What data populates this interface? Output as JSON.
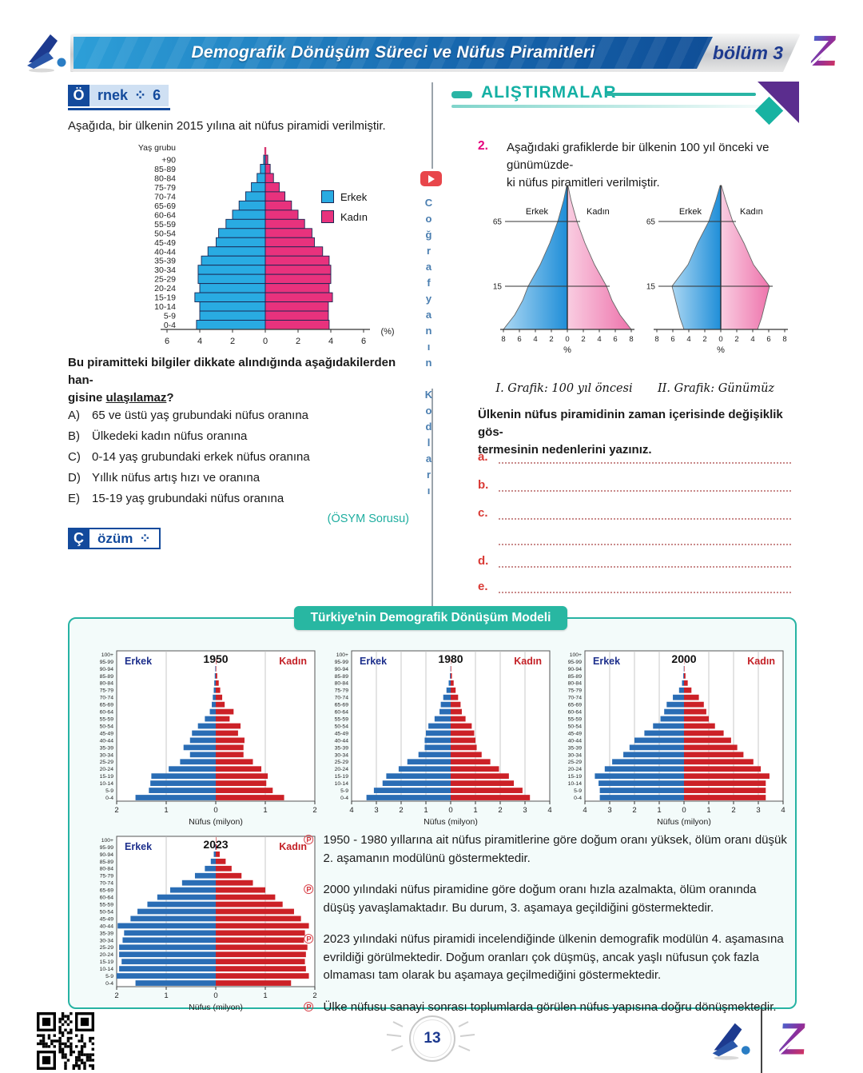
{
  "header": {
    "title": "Demografik Dönüşüm Süreci ve Nüfus Piramitleri",
    "chapter": "bölüm 3"
  },
  "sidebar": {
    "channel": "Coğrafyanın Kodları"
  },
  "page": {
    "number": "13"
  },
  "ornek": {
    "badge_initial": "Ö",
    "badge_rest": "rnek",
    "badge_icon": "⁘",
    "badge_number": "6",
    "intro": "Aşağıda, bir ülkenin 2015 yılına ait nüfus piramidi verilmiştir.",
    "question_line1": "Bu piramitteki bilgiler dikkate alındığında aşağıdakilerden han-",
    "question_pre": "gisine ",
    "question_underlined": "ulaşılamaz",
    "question_post": "?",
    "options": [
      {
        "key": "A)",
        "text": "65 ve üstü yaş grubundaki nüfus oranına"
      },
      {
        "key": "B)",
        "text": "Ülkedeki kadın nüfus oranına"
      },
      {
        "key": "C)",
        "text": "0-14 yaş grubundaki erkek nüfus oranına"
      },
      {
        "key": "D)",
        "text": "Yıllık nüfus artış hızı ve oranına"
      },
      {
        "key": "E)",
        "text": "15-19 yaş grubundaki nüfus oranına"
      }
    ],
    "source": "(ÖSYM Sorusu)",
    "cozum_initial": "Ç",
    "cozum_rest": "özüm",
    "cozum_icon": "⁘"
  },
  "exercises": {
    "title": "ALIŞTIRMALAR",
    "q_number": "2.",
    "q_line1": "Aşağıdaki grafiklerde bir ülkenin 100 yıl önceki ve günümüzde-",
    "q_line2": "ki nüfus piramitleri verilmiştir.",
    "caption1": "I. Grafik: 100 yıl öncesi",
    "caption2": "II. Grafik: Günümüz",
    "prompt_line1": "Ülkenin nüfus piramidinin zaman içerisinde değişiklik gös-",
    "prompt_line2": "termesinin nedenlerini yazınız.",
    "answer_labels": [
      "a.",
      "b.",
      "c.",
      "d.",
      "e."
    ]
  },
  "model_box": {
    "title": "Türkiye'nin Demografik Dönüşüm Modeli",
    "bullets": [
      "1950 - 1980 yıllarına ait nüfus piramitlerine göre doğum oranı yüksek, ölüm oranı düşük 2. aşamanın modülünü göstermektedir.",
      "2000 yılındaki nüfus piramidine göre doğum oranı hızla azalmakta, ölüm oranında düşüş yavaşlamaktadır. Bu durum, 3. aşamaya geçildiğini göstermektedir.",
      "2023 yılındaki nüfus piramidi incelendiğinde ülkenin demografik modülün 4. aşamasına evrildiği görülmektedir. Doğum oranları çok düşmüş, ancak yaşlı nüfusun çok fazla olmaması tam olarak bu aşamaya geçilmediğini göstermektedir.",
      "Ülke nüfusu sanayi sonrası toplumlarda görülen nüfus yapısına doğru dönüşmektedir."
    ]
  },
  "chart_data": [
    {
      "id": "ornek6",
      "type": "bar-pyramid",
      "title": "",
      "year": "2015",
      "unit": "%",
      "ylabel": "Yaş grubu",
      "xlabel": "(%)",
      "axis_max": 6,
      "ticks": [
        6,
        4,
        2,
        0,
        2,
        4,
        6
      ],
      "top_tick": true,
      "legend": {
        "male": "Erkek",
        "female": "Kadın"
      },
      "colors": {
        "male": "#29abe2",
        "female": "#e8327d",
        "outline": "#1b2653"
      },
      "ages": [
        "+90",
        "85-89",
        "80-84",
        "75-79",
        "70-74",
        "65-69",
        "60-64",
        "55-59",
        "50-54",
        "45-49",
        "40-44",
        "35-39",
        "30-34",
        "25-29",
        "20-24",
        "15-19",
        "10-14",
        "5-9",
        "0-4"
      ],
      "male": [
        0.1,
        0.3,
        0.5,
        0.85,
        1.2,
        1.6,
        2.0,
        2.4,
        2.85,
        3.0,
        3.5,
        3.9,
        4.1,
        4.1,
        4.0,
        4.3,
        4.0,
        4.0,
        4.2
      ],
      "female": [
        0.15,
        0.3,
        0.5,
        0.85,
        1.2,
        1.6,
        2.0,
        2.4,
        2.85,
        3.0,
        3.5,
        3.9,
        4.0,
        4.0,
        3.9,
        4.1,
        3.85,
        3.85,
        3.9
      ]
    },
    {
      "id": "graph1",
      "type": "silhouette-pyramid",
      "caption": "I. Grafik: 100 yıl öncesi",
      "left_label": "Erkek",
      "right_label": "Kadın",
      "xlabel": "%",
      "axis_max": 8,
      "ticks": [
        8,
        6,
        4,
        2,
        0,
        2,
        4,
        6,
        8
      ],
      "reflines": [
        {
          "label": "65",
          "h": 0.75
        },
        {
          "label": "15",
          "h": 0.3
        }
      ],
      "grad": {
        "left": [
          "#abd7f3",
          "#1f8ed8"
        ],
        "right": [
          "#f9cde1",
          "#ee74ac"
        ]
      },
      "points": [
        [
          0,
          8
        ],
        [
          0.1,
          6.6
        ],
        [
          0.2,
          5.6
        ],
        [
          0.3,
          4.9
        ],
        [
          0.45,
          3.4
        ],
        [
          0.6,
          2.2
        ],
        [
          0.75,
          1.2
        ],
        [
          0.9,
          0.45
        ],
        [
          1,
          0.07
        ]
      ]
    },
    {
      "id": "graph2",
      "type": "silhouette-pyramid",
      "caption": "II. Grafik: Günümüz",
      "left_label": "Erkek",
      "right_label": "Kadın",
      "xlabel": "%",
      "axis_max": 8,
      "ticks": [
        8,
        6,
        4,
        2,
        0,
        2,
        4,
        6,
        8
      ],
      "reflines": [
        {
          "label": "65",
          "h": 0.75
        },
        {
          "label": "15",
          "h": 0.3
        }
      ],
      "grad": {
        "left": [
          "#abd7f3",
          "#1f8ed8"
        ],
        "right": [
          "#f9cde1",
          "#ee74ac"
        ]
      },
      "points": [
        [
          0,
          4.6
        ],
        [
          0.08,
          5.1
        ],
        [
          0.3,
          6.1
        ],
        [
          0.45,
          4.1
        ],
        [
          0.6,
          2.9
        ],
        [
          0.75,
          1.5
        ],
        [
          0.9,
          0.6
        ],
        [
          1,
          0.08
        ]
      ]
    },
    {
      "id": "y1950",
      "type": "bar-pyramid",
      "title": "1950",
      "xlabel": "Nüfus (milyon)",
      "axis_max": 2,
      "ticks": [
        2,
        1,
        0,
        1,
        2
      ],
      "left_label": "Erkek",
      "right_label": "Kadın",
      "colors": {
        "male": "#2a6db5",
        "female": "#cc2127"
      },
      "ages": [
        "100+",
        "95-99",
        "90-94",
        "85-89",
        "80-84",
        "75-79",
        "70-74",
        "65-69",
        "60-64",
        "55-59",
        "50-54",
        "45-49",
        "40-44",
        "35-39",
        "30-34",
        "25-29",
        "20-24",
        "15-19",
        "10-14",
        "5-9",
        "0-4"
      ],
      "male": [
        0.0,
        0.0,
        0.01,
        0.02,
        0.03,
        0.04,
        0.06,
        0.08,
        0.12,
        0.22,
        0.36,
        0.48,
        0.52,
        0.65,
        0.52,
        0.72,
        0.95,
        1.3,
        1.32,
        1.35,
        1.62
      ],
      "female": [
        0.0,
        0.01,
        0.01,
        0.03,
        0.06,
        0.09,
        0.13,
        0.18,
        0.36,
        0.28,
        0.5,
        0.45,
        0.58,
        0.56,
        0.56,
        0.75,
        0.92,
        1.05,
        1.02,
        1.15,
        1.38
      ]
    },
    {
      "id": "y1980",
      "type": "bar-pyramid",
      "title": "1980",
      "xlabel": "Nüfus (milyon)",
      "axis_max": 4,
      "ticks": [
        4,
        3,
        2,
        1,
        0,
        1,
        2,
        3,
        4
      ],
      "left_label": "Erkek",
      "right_label": "Kadın",
      "colors": {
        "male": "#2a6db5",
        "female": "#cc2127"
      },
      "ages": [
        "100+",
        "95-99",
        "90-94",
        "85-89",
        "80-84",
        "75-79",
        "70-74",
        "65-69",
        "60-64",
        "55-59",
        "50-54",
        "45-49",
        "40-44",
        "35-39",
        "30-34",
        "25-29",
        "20-24",
        "15-19",
        "10-14",
        "5-9",
        "0-4"
      ],
      "male": [
        0.0,
        0.0,
        0.01,
        0.03,
        0.08,
        0.17,
        0.3,
        0.4,
        0.45,
        0.65,
        0.9,
        1.0,
        1.05,
        1.05,
        1.3,
        1.75,
        2.1,
        2.6,
        2.75,
        3.1,
        3.4
      ],
      "female": [
        0.0,
        0.01,
        0.02,
        0.05,
        0.12,
        0.2,
        0.3,
        0.4,
        0.45,
        0.6,
        0.85,
        0.95,
        1.0,
        1.05,
        1.25,
        1.6,
        1.95,
        2.35,
        2.55,
        2.9,
        3.2
      ]
    },
    {
      "id": "y2000",
      "type": "bar-pyramid",
      "title": "2000",
      "xlabel": "Nüfus (milyon)",
      "axis_max": 4,
      "ticks": [
        4,
        3,
        2,
        1,
        0,
        1,
        2,
        3,
        4
      ],
      "left_label": "Erkek",
      "right_label": "Kadın",
      "colors": {
        "male": "#2a6db5",
        "female": "#cc2127"
      },
      "ages": [
        "100+",
        "95-99",
        "90-94",
        "85-89",
        "80-84",
        "75-79",
        "70-74",
        "65-69",
        "60-64",
        "55-59",
        "50-54",
        "45-49",
        "40-44",
        "35-39",
        "30-34",
        "25-29",
        "20-24",
        "15-19",
        "10-14",
        "5-9",
        "0-4"
      ],
      "male": [
        0.0,
        0.0,
        0.01,
        0.03,
        0.08,
        0.2,
        0.45,
        0.7,
        0.8,
        0.95,
        1.25,
        1.6,
        2.0,
        2.2,
        2.45,
        2.9,
        3.2,
        3.6,
        3.45,
        3.4,
        3.4
      ],
      "female": [
        0.0,
        0.01,
        0.02,
        0.06,
        0.15,
        0.3,
        0.6,
        0.8,
        0.9,
        1.0,
        1.25,
        1.6,
        1.9,
        2.15,
        2.4,
        2.8,
        3.1,
        3.45,
        3.3,
        3.3,
        3.3
      ]
    },
    {
      "id": "y2023",
      "type": "bar-pyramid",
      "title": "2023",
      "xlabel": "Nüfus (milyon)",
      "axis_max": 2,
      "ticks": [
        2,
        1,
        0,
        1,
        2
      ],
      "left_label": "Erkek",
      "right_label": "Kadın",
      "colors": {
        "male": "#2a6db5",
        "female": "#cc2127"
      },
      "ages": [
        "100+",
        "95-99",
        "90-94",
        "85-89",
        "80-84",
        "75-79",
        "70-74",
        "65-69",
        "60-64",
        "55-59",
        "50-54",
        "45-49",
        "40-44",
        "35-39",
        "30-34",
        "25-29",
        "20-24",
        "15-19",
        "10-14",
        "5-9",
        "0-4"
      ],
      "male": [
        0.0,
        0.01,
        0.04,
        0.1,
        0.22,
        0.42,
        0.68,
        0.92,
        1.18,
        1.38,
        1.58,
        1.72,
        1.98,
        1.85,
        1.88,
        1.95,
        1.95,
        1.9,
        1.95,
        2.0,
        1.62
      ],
      "female": [
        0.01,
        0.02,
        0.08,
        0.2,
        0.32,
        0.52,
        0.75,
        1.0,
        1.2,
        1.35,
        1.58,
        1.72,
        1.88,
        1.8,
        1.78,
        1.85,
        1.82,
        1.8,
        1.82,
        1.88,
        1.52
      ]
    }
  ]
}
